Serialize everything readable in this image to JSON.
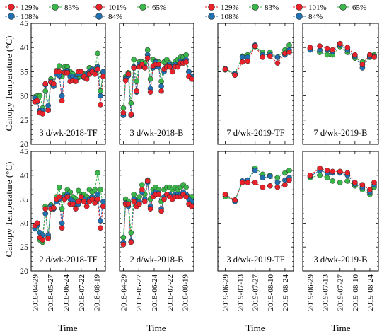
{
  "y_axis_label": "Canopy Temperature (°C)",
  "x_axis_label": "Time",
  "legend": [
    {
      "label": "129%",
      "color": "#e8212a"
    },
    {
      "label": "108%",
      "color": "#2170b0"
    },
    {
      "label": "83%",
      "color": "#3ab54a"
    },
    {
      "label": "101%",
      "color": "#e8212a"
    },
    {
      "label": "84%",
      "color": "#2170b0"
    },
    {
      "label": "65%",
      "color": "#3ab54a"
    }
  ],
  "colors": {
    "129%": "#e8212a",
    "108%": "#2170b0",
    "83%": "#3ab54a",
    "101%": "#e8212a",
    "84%": "#2170b0",
    "65%": "#3ab54a"
  },
  "x_ticks_2018": [
    "2018-04-29",
    "2018-05-27",
    "2018-06-24",
    "2018-07-22",
    "2018-08-19"
  ],
  "x_ticks_2019": [
    "2019-06-29",
    "2019-07-13",
    "2019-07-27",
    "2019-08-10",
    "2019-08-24"
  ],
  "y_ticks": [
    "20",
    "25",
    "30",
    "35",
    "40",
    "45"
  ],
  "chart_data": [
    {
      "type": "line",
      "panel_label": "3 d/wk-2018-TF",
      "ylim": [
        20,
        45
      ],
      "x": [
        "2018-04-29",
        "2018-05-03",
        "2018-05-08",
        "2018-05-13",
        "2018-05-18",
        "2018-05-23",
        "2018-05-28",
        "2018-06-02",
        "2018-06-07",
        "2018-06-12",
        "2018-06-17",
        "2018-06-22",
        "2018-06-27",
        "2018-07-02",
        "2018-07-07",
        "2018-07-12",
        "2018-07-17",
        "2018-07-22",
        "2018-07-27",
        "2018-08-01",
        "2018-08-06",
        "2018-08-11",
        "2018-08-16",
        "2018-08-21",
        "2018-08-26",
        "2018-08-31"
      ],
      "series": [
        {
          "name": "129%",
          "values": [
            28.8,
            29.0,
            26.5,
            26.3,
            32.5,
            27.0,
            32.8,
            32.5,
            35.0,
            35.0,
            29.0,
            34.8,
            34.8,
            33.0,
            33.2,
            33.0,
            35.0,
            35.0,
            34.0,
            33.5,
            34.5,
            35.0,
            34.5,
            35.5,
            28.2,
            34.0
          ]
        },
        {
          "name": "108%",
          "values": [
            29.5,
            28.8,
            27.0,
            27.0,
            32.3,
            28.0,
            33.0,
            32.0,
            34.5,
            34.2,
            30.0,
            35.0,
            35.2,
            34.0,
            34.0,
            33.5,
            34.5,
            34.5,
            33.8,
            34.5,
            35.0,
            35.5,
            35.0,
            36.0,
            30.0,
            35.0
          ]
        },
        {
          "name": "83%",
          "values": [
            29.8,
            30.0,
            30.0,
            27.5,
            31.0,
            27.2,
            33.5,
            32.0,
            35.2,
            36.2,
            34.0,
            36.0,
            36.0,
            35.0,
            34.5,
            33.8,
            33.8,
            34.0,
            34.5,
            34.0,
            35.8,
            35.0,
            35.5,
            38.8,
            31.0,
            34.8
          ]
        }
      ]
    },
    {
      "type": "line",
      "panel_label": "3 d/wk-2018-B",
      "ylim": [
        20,
        45
      ],
      "x": [
        "2018-04-29",
        "2018-05-03",
        "2018-05-08",
        "2018-05-13",
        "2018-05-18",
        "2018-05-23",
        "2018-05-28",
        "2018-06-02",
        "2018-06-07",
        "2018-06-12",
        "2018-06-17",
        "2018-06-22",
        "2018-06-27",
        "2018-07-02",
        "2018-07-07",
        "2018-07-12",
        "2018-07-17",
        "2018-07-22",
        "2018-07-27",
        "2018-08-01",
        "2018-08-06",
        "2018-08-11",
        "2018-08-16",
        "2018-08-21",
        "2018-08-26",
        "2018-08-31"
      ],
      "series": [
        {
          "name": "129%",
          "values": [
            26.5,
            33.2,
            34.5,
            26.2,
            35.8,
            31.0,
            36.0,
            36.5,
            35.8,
            37.8,
            30.8,
            36.2,
            36.5,
            36.5,
            31.0,
            35.5,
            36.0,
            36.0,
            35.0,
            36.0,
            36.0,
            36.8,
            36.8,
            37.0,
            34.0,
            33.5
          ]
        },
        {
          "name": "108%",
          "values": [
            26.0,
            33.5,
            34.2,
            26.0,
            36.0,
            30.8,
            36.5,
            36.2,
            36.0,
            38.5,
            31.5,
            35.8,
            37.0,
            36.0,
            32.0,
            35.0,
            36.2,
            36.5,
            36.0,
            36.5,
            36.2,
            37.2,
            37.0,
            37.5,
            35.0,
            34.0
          ]
        },
        {
          "name": "83%",
          "values": [
            27.5,
            34.0,
            34.8,
            28.5,
            37.5,
            33.0,
            37.0,
            37.0,
            36.8,
            39.5,
            33.5,
            37.5,
            37.2,
            37.0,
            33.0,
            37.0,
            37.5,
            36.8,
            36.5,
            37.0,
            37.5,
            38.0,
            38.0,
            38.5,
            35.0,
            34.0
          ]
        }
      ]
    },
    {
      "type": "line",
      "panel_label": "7 d/wk-2019-TF",
      "ylim": [
        20,
        45
      ],
      "x": [
        "2019-06-29",
        "2019-07-08",
        "2019-07-15",
        "2019-07-20",
        "2019-07-27",
        "2019-08-03",
        "2019-08-10",
        "2019-08-17",
        "2019-08-24",
        "2019-08-28"
      ],
      "series": [
        {
          "name": "101%",
          "values": [
            35.5,
            34.3,
            37.0,
            37.2,
            40.3,
            38.0,
            38.2,
            36.8,
            38.8,
            39.0
          ]
        },
        {
          "name": "84%",
          "values": [
            35.6,
            34.6,
            38.0,
            38.0,
            40.5,
            38.5,
            38.5,
            38.0,
            38.5,
            39.5
          ]
        },
        {
          "name": "65%",
          "values": [
            35.4,
            34.5,
            38.2,
            38.5,
            40.2,
            39.0,
            39.0,
            38.0,
            39.5,
            40.5
          ]
        }
      ]
    },
    {
      "type": "line",
      "panel_label": "7 d/wk-2019-B",
      "ylim": [
        20,
        45
      ],
      "x": [
        "2019-06-29",
        "2019-07-08",
        "2019-07-15",
        "2019-07-20",
        "2019-07-27",
        "2019-08-03",
        "2019-08-10",
        "2019-08-17",
        "2019-08-24",
        "2019-08-28"
      ],
      "series": [
        {
          "name": "101%",
          "values": [
            40.0,
            40.3,
            39.8,
            39.5,
            40.8,
            40.0,
            38.5,
            36.5,
            38.5,
            38.0
          ]
        },
        {
          "name": "84%",
          "values": [
            39.5,
            39.5,
            39.5,
            39.2,
            40.5,
            39.5,
            38.2,
            35.8,
            38.2,
            38.2
          ]
        },
        {
          "name": "65%",
          "values": [
            39.8,
            39.0,
            38.5,
            38.5,
            40.2,
            39.0,
            37.8,
            37.0,
            38.0,
            38.5
          ]
        }
      ]
    },
    {
      "type": "line",
      "panel_label": "2 d/wk-2018-TF",
      "ylim": [
        20,
        45
      ],
      "x": [
        "2018-04-29",
        "2018-05-03",
        "2018-05-08",
        "2018-05-13",
        "2018-05-18",
        "2018-05-23",
        "2018-05-28",
        "2018-06-02",
        "2018-06-07",
        "2018-06-12",
        "2018-06-17",
        "2018-06-22",
        "2018-06-27",
        "2018-07-02",
        "2018-07-07",
        "2018-07-12",
        "2018-07-17",
        "2018-07-22",
        "2018-07-27",
        "2018-08-01",
        "2018-08-06",
        "2018-08-11",
        "2018-08-16",
        "2018-08-21",
        "2018-08-26",
        "2018-08-31"
      ],
      "series": [
        {
          "name": "129%",
          "values": [
            29.5,
            30.0,
            27.0,
            26.5,
            33.0,
            26.8,
            33.0,
            33.2,
            35.0,
            35.5,
            29.0,
            35.0,
            35.5,
            34.0,
            34.0,
            33.0,
            34.5,
            35.5,
            34.5,
            33.5,
            34.5,
            35.0,
            34.2,
            35.0,
            29.0,
            33.5
          ]
        },
        {
          "name": "108%",
          "values": [
            28.8,
            29.5,
            28.0,
            27.5,
            32.0,
            27.5,
            33.5,
            33.0,
            34.5,
            35.0,
            30.0,
            35.5,
            36.0,
            35.0,
            34.5,
            34.0,
            34.0,
            35.0,
            35.0,
            34.5,
            35.0,
            35.5,
            35.0,
            36.0,
            30.5,
            34.5
          ]
        },
        {
          "name": "83%",
          "values": [
            29.0,
            30.0,
            26.5,
            26.0,
            33.5,
            27.0,
            33.8,
            33.0,
            35.5,
            37.5,
            33.0,
            36.0,
            37.0,
            36.5,
            35.5,
            35.0,
            36.8,
            36.0,
            36.0,
            35.5,
            37.0,
            36.5,
            37.0,
            40.5,
            37.0,
            33.5
          ]
        }
      ]
    },
    {
      "type": "line",
      "panel_label": "2 d/wk-2018-B",
      "ylim": [
        20,
        45
      ],
      "x": [
        "2018-04-29",
        "2018-05-03",
        "2018-05-08",
        "2018-05-13",
        "2018-05-18",
        "2018-05-23",
        "2018-05-28",
        "2018-06-02",
        "2018-06-07",
        "2018-06-12",
        "2018-06-17",
        "2018-06-22",
        "2018-06-27",
        "2018-07-02",
        "2018-07-07",
        "2018-07-12",
        "2018-07-17",
        "2018-07-22",
        "2018-07-27",
        "2018-08-01",
        "2018-08-06",
        "2018-08-11",
        "2018-08-16",
        "2018-08-21",
        "2018-08-26",
        "2018-08-31"
      ],
      "series": [
        {
          "name": "129%",
          "values": [
            25.5,
            34.0,
            34.0,
            26.0,
            34.5,
            33.5,
            34.0,
            37.0,
            34.5,
            38.8,
            33.0,
            35.5,
            36.0,
            36.0,
            32.5,
            35.0,
            36.0,
            35.5,
            35.0,
            35.5,
            35.5,
            35.5,
            36.0,
            35.5,
            34.0,
            33.5
          ]
        },
        {
          "name": "108%",
          "values": [
            26.0,
            34.2,
            33.5,
            26.2,
            35.0,
            34.0,
            34.5,
            36.5,
            35.0,
            38.5,
            33.5,
            36.0,
            36.5,
            36.2,
            33.0,
            35.5,
            36.0,
            36.0,
            35.5,
            36.0,
            36.0,
            36.0,
            36.5,
            36.0,
            35.0,
            34.5
          ]
        },
        {
          "name": "83%",
          "values": [
            27.0,
            35.0,
            34.5,
            28.0,
            36.0,
            35.0,
            35.5,
            38.0,
            36.0,
            39.0,
            35.0,
            37.0,
            37.5,
            37.0,
            34.5,
            37.0,
            37.5,
            37.5,
            37.0,
            37.5,
            37.0,
            37.5,
            38.0,
            37.5,
            35.5,
            35.5
          ]
        }
      ]
    },
    {
      "type": "line",
      "panel_label": "3 d/wk-2019-TF",
      "ylim": [
        20,
        45
      ],
      "x": [
        "2019-06-29",
        "2019-07-08",
        "2019-07-15",
        "2019-07-20",
        "2019-07-27",
        "2019-08-03",
        "2019-08-10",
        "2019-08-17",
        "2019-08-24",
        "2019-08-28"
      ],
      "series": [
        {
          "name": "101%",
          "values": [
            36.0,
            34.8,
            38.5,
            38.5,
            38.5,
            37.5,
            37.8,
            37.5,
            38.0,
            39.0
          ]
        },
        {
          "name": "84%",
          "values": [
            36.0,
            34.5,
            38.8,
            39.0,
            41.0,
            39.5,
            39.8,
            38.5,
            39.0,
            39.5
          ]
        },
        {
          "name": "65%",
          "values": [
            35.5,
            34.8,
            38.5,
            39.0,
            41.5,
            40.2,
            40.0,
            39.5,
            40.5,
            41.0
          ]
        }
      ]
    },
    {
      "type": "line",
      "panel_label": "3 d/wk-2019-B",
      "ylim": [
        20,
        45
      ],
      "x": [
        "2019-06-29",
        "2019-07-08",
        "2019-07-15",
        "2019-07-20",
        "2019-07-27",
        "2019-08-03",
        "2019-08-10",
        "2019-08-17",
        "2019-08-24",
        "2019-08-28"
      ],
      "series": [
        {
          "name": "101%",
          "values": [
            40.0,
            41.5,
            41.0,
            40.8,
            40.8,
            40.5,
            38.5,
            38.0,
            37.0,
            38.5
          ]
        },
        {
          "name": "84%",
          "values": [
            39.8,
            41.0,
            40.5,
            40.5,
            40.5,
            40.0,
            38.2,
            37.5,
            36.5,
            38.0
          ]
        },
        {
          "name": "65%",
          "values": [
            39.5,
            40.0,
            39.5,
            38.8,
            38.5,
            38.8,
            37.8,
            37.0,
            36.0,
            37.5
          ]
        }
      ]
    }
  ]
}
